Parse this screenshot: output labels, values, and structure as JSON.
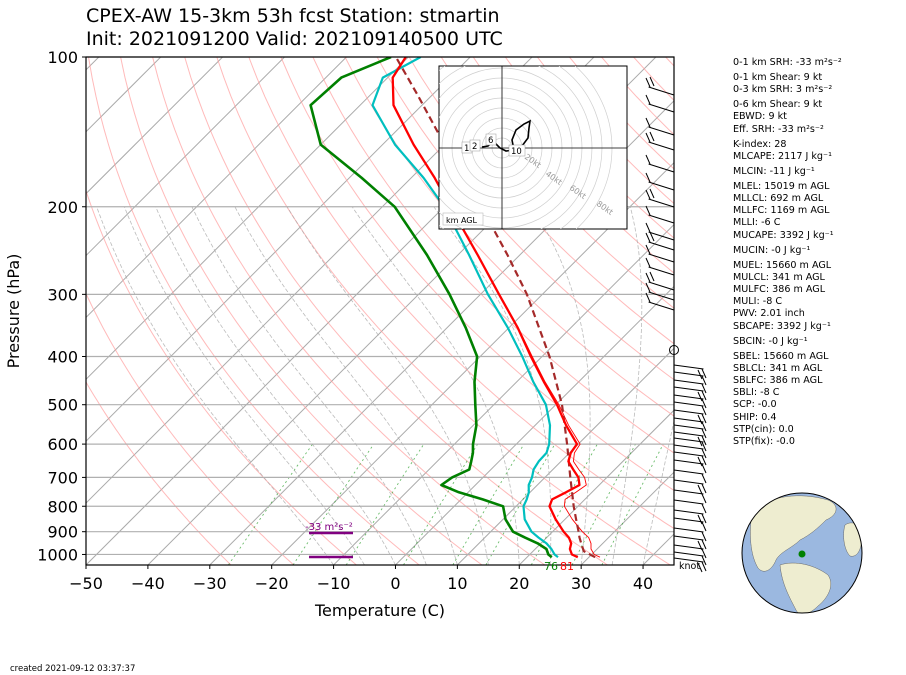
{
  "header": {
    "title_line1": "CPEX-AW 15-3km  53h fcst  Station: stmartin",
    "title_line2": "Init: 2021091200  Valid: 202109140500 UTC"
  },
  "footer": {
    "created": "created 2021-09-12 03:37:37"
  },
  "indices": [
    {
      "name": "0-1 km SRH",
      "value": "-33",
      "unit": "m²s⁻²",
      "text": "0-1 km SRH: -33 m²s⁻²"
    },
    {
      "name": "0-1 km Shear",
      "value": "9",
      "unit": "kt",
      "text": "0-1 km Shear: 9 kt"
    },
    {
      "name": "0-3 km SRH",
      "value": "3",
      "unit": "m²s⁻²",
      "text": "0-3 km SRH: 3 m²s⁻²"
    },
    {
      "name": "0-6 km Shear",
      "value": "9",
      "unit": "kt",
      "text": "0-6 km Shear: 9 kt"
    },
    {
      "name": "EBWD",
      "value": "9",
      "unit": "kt",
      "text": "EBWD: 9 kt"
    },
    {
      "name": "Eff. SRH",
      "value": "-33",
      "unit": "m²s⁻²",
      "text": "Eff. SRH: -33 m²s⁻²"
    },
    {
      "name": "K-index",
      "value": "28",
      "unit": "",
      "text": "K-index: 28"
    },
    {
      "name": "MLCAPE",
      "value": "2117",
      "unit": "J kg⁻¹",
      "text": "MLCAPE: 2117 J kg⁻¹"
    },
    {
      "name": "MLCIN",
      "value": "-11",
      "unit": "J kg⁻¹",
      "text": "MLCIN: -11 J kg⁻¹"
    },
    {
      "name": "MLEL",
      "value": "15019",
      "unit": "m AGL",
      "text": "MLEL: 15019 m AGL"
    },
    {
      "name": "MLLCL",
      "value": "692",
      "unit": "m AGL",
      "text": "MLLCL: 692 m AGL"
    },
    {
      "name": "MLLFC",
      "value": "1169",
      "unit": "m AGL",
      "text": "MLLFC: 1169 m AGL"
    },
    {
      "name": "MLLI",
      "value": "-6",
      "unit": "C",
      "text": "MLLI: -6 C"
    },
    {
      "name": "MUCAPE",
      "value": "3392",
      "unit": "J kg⁻¹",
      "text": "MUCAPE: 3392 J kg⁻¹"
    },
    {
      "name": "MUCIN",
      "value": "-0",
      "unit": "J kg⁻¹",
      "text": "MUCIN: -0 J kg⁻¹"
    },
    {
      "name": "MUEL",
      "value": "15660",
      "unit": "m AGL",
      "text": "MUEL: 15660 m AGL"
    },
    {
      "name": "MULCL",
      "value": "341",
      "unit": "m AGL",
      "text": "MULCL: 341 m AGL"
    },
    {
      "name": "MULFC",
      "value": "386",
      "unit": "m AGL",
      "text": "MULFC: 386 m AGL"
    },
    {
      "name": "MULI",
      "value": "-8",
      "unit": "C",
      "text": "MULI: -8 C"
    },
    {
      "name": "PWV",
      "value": "2.01",
      "unit": "inch",
      "text": "PWV: 2.01 inch"
    },
    {
      "name": "SBCAPE",
      "value": "3392",
      "unit": "J kg⁻¹",
      "text": "SBCAPE: 3392 J kg⁻¹"
    },
    {
      "name": "SBCIN",
      "value": "-0",
      "unit": "J kg⁻¹",
      "text": "SBCIN: -0 J kg⁻¹"
    },
    {
      "name": "SBEL",
      "value": "15660",
      "unit": "m AGL",
      "text": "SBEL: 15660 m AGL"
    },
    {
      "name": "SBLCL",
      "value": "341",
      "unit": "m AGL",
      "text": "SBLCL: 341 m AGL"
    },
    {
      "name": "SBLFC",
      "value": "386",
      "unit": "m AGL",
      "text": "SBLFC: 386 m AGL"
    },
    {
      "name": "SBLI",
      "value": "-8",
      "unit": "C",
      "text": "SBLI: -8 C"
    },
    {
      "name": "SCP",
      "value": "-0.0",
      "unit": "",
      "text": "SCP: -0.0"
    },
    {
      "name": "SHIP",
      "value": "0.4",
      "unit": "",
      "text": "SHIP: 0.4"
    },
    {
      "name": "STP(cin)",
      "value": "0.0",
      "unit": "",
      "text": "STP(cin): 0.0"
    },
    {
      "name": "STP(fix)",
      "value": "-0.0",
      "unit": "",
      "text": "STP(fix): -0.0"
    }
  ],
  "chart_data": {
    "type": "line",
    "title": "CPEX-AW 15-3km  53h fcst  Station: stmartin",
    "subtitle": "Init: 2021091200  Valid: 202109140500 UTC",
    "xlabel": "Temperature (C)",
    "ylabel": "Pressure (hPa)",
    "xlim": [
      -50,
      45
    ],
    "ylim": [
      1050,
      100
    ],
    "yscale": "log",
    "skew": true,
    "x_ticks": [
      -50,
      -40,
      -30,
      -20,
      -10,
      0,
      10,
      20,
      30,
      40
    ],
    "y_ticks": [
      100,
      200,
      300,
      400,
      500,
      600,
      700,
      800,
      900,
      1000
    ],
    "grid": true,
    "colors": {
      "temperature": "#ff0000",
      "virtual_temperature": "#ff0000",
      "wetbulb": "#00bfbf",
      "dewpoint": "#008000",
      "parcel": "#a52a2a",
      "isotherm": "#aaaaaa",
      "dry_adiabat": "#ff9c9c",
      "moist_adiabat": "#aaaaaa",
      "mixing_ratio": "#2ca02c",
      "srh_bar": "#800080"
    },
    "series": [
      {
        "role": "temperature",
        "pressure": [
          1013,
          1000,
          975,
          950,
          925,
          900,
          850,
          800,
          775,
          750,
          725,
          700,
          675,
          650,
          625,
          600,
          550,
          500,
          450,
          400,
          350,
          300,
          250,
          200,
          175,
          150,
          125,
          110,
          100
        ],
        "values": [
          28.2,
          26.8,
          25.6,
          24.9,
          23.6,
          21.8,
          18.5,
          15.4,
          14.7,
          15.8,
          16.8,
          15.4,
          13.3,
          11.2,
          10.2,
          9.8,
          5.0,
          0.2,
          -5.6,
          -11.8,
          -18.6,
          -27.0,
          -36.8,
          -49.0,
          -56.2,
          -65.0,
          -74.6,
          -79.2,
          -80.4
        ]
      },
      {
        "role": "virtual_temperature",
        "pressure": [
          1013,
          1000,
          975,
          950,
          925,
          900,
          850,
          800,
          775,
          750,
          725,
          700,
          675,
          650,
          625,
          600,
          550,
          500,
          450,
          400,
          350,
          300,
          250,
          200,
          175,
          150,
          125,
          110,
          100
        ],
        "values": [
          31.8,
          30.4,
          29.0,
          28.1,
          26.8,
          24.8,
          21.2,
          17.8,
          16.8,
          17.4,
          17.9,
          16.4,
          14.2,
          12.0,
          10.8,
          10.3,
          5.4,
          0.5,
          -5.4,
          -11.6,
          -18.5,
          -27.0,
          -36.8,
          -49.0,
          -56.2,
          -65.0,
          -74.6,
          -79.2,
          -80.4
        ]
      },
      {
        "role": "wetbulb",
        "pressure": [
          1013,
          1000,
          975,
          950,
          925,
          900,
          850,
          800,
          775,
          750,
          725,
          700,
          675,
          650,
          625,
          600,
          550,
          500,
          450,
          400,
          350,
          300,
          250,
          200,
          175,
          150,
          125,
          110,
          100
        ],
        "values": [
          25.0,
          24.0,
          22.6,
          20.9,
          18.7,
          16.6,
          13.5,
          11.2,
          10.6,
          9.8,
          8.6,
          7.9,
          6.9,
          6.4,
          6.3,
          5.3,
          2.4,
          -1.6,
          -7.3,
          -13.2,
          -20.2,
          -28.8,
          -38.2,
          -50.0,
          -58.0,
          -68.0,
          -78.0,
          -80.8,
          -78.0
        ]
      },
      {
        "role": "dewpoint",
        "pressure": [
          1013,
          1000,
          975,
          950,
          925,
          900,
          850,
          800,
          775,
          750,
          725,
          700,
          675,
          650,
          625,
          600,
          550,
          500,
          450,
          400,
          350,
          300,
          250,
          200,
          175,
          150,
          125,
          110,
          100
        ],
        "values": [
          24.0,
          23.0,
          21.8,
          19.5,
          16.5,
          13.6,
          10.4,
          7.9,
          3.5,
          -1.5,
          -5.5,
          -5.0,
          -3.5,
          -4.5,
          -5.6,
          -7.0,
          -9.5,
          -13.0,
          -16.8,
          -20.5,
          -27.0,
          -35.0,
          -45.0,
          -58.0,
          -68.0,
          -80.0,
          -88.0,
          -87.5,
          -82.8
        ]
      },
      {
        "role": "parcel",
        "pressure": [
          1013,
          985,
          960,
          925,
          900,
          850,
          800,
          700,
          600,
          500,
          400,
          300,
          250,
          200,
          150,
          120,
          100
        ],
        "values": [
          31.0,
          28.2,
          27.0,
          25.3,
          24.2,
          21.8,
          19.3,
          14.1,
          8.2,
          1.0,
          -8.8,
          -22.5,
          -32.0,
          -44.0,
          -60.0,
          -72.0,
          -82.0
        ]
      }
    ],
    "surface_labels": {
      "dewpoint": "76",
      "temperature": "81"
    },
    "srh_annotation": {
      "text": "-33 m²s⁻²"
    },
    "wind_unit_label": "knot",
    "hodograph": {
      "ring_labels": [
        "20kt",
        "40kt",
        "60kt",
        "80kt"
      ],
      "height_labels": [
        "1",
        "2",
        "6",
        "10"
      ],
      "legend": "km AGL"
    }
  }
}
